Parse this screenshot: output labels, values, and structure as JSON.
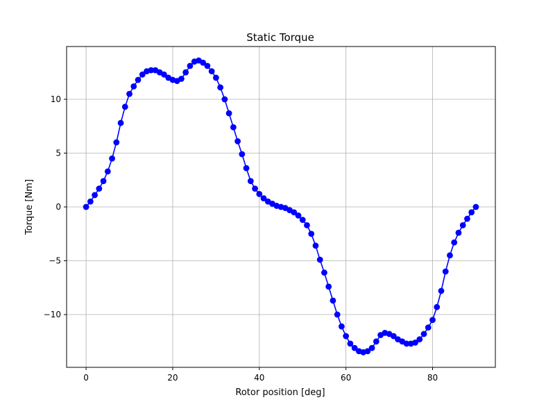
{
  "chart_data": {
    "type": "line",
    "title": "Static Torque",
    "xlabel": "Rotor position [deg]",
    "ylabel": "Torque [Nm]",
    "xlim": [
      -4.5,
      94.5
    ],
    "ylim": [
      -14.9,
      14.9
    ],
    "xticks": [
      0,
      20,
      40,
      60,
      80
    ],
    "yticks": [
      -10,
      -5,
      0,
      5,
      10
    ],
    "xtick_labels": [
      "0",
      "20",
      "40",
      "60",
      "80"
    ],
    "ytick_labels": [
      "−10",
      "−5",
      "0",
      "5",
      "10"
    ],
    "grid": true,
    "series": [
      {
        "color": "#0000ff",
        "marker": "circle",
        "x": [
          0,
          1,
          2,
          3,
          4,
          5,
          6,
          7,
          8,
          9,
          10,
          11,
          12,
          13,
          14,
          15,
          16,
          17,
          18,
          19,
          20,
          21,
          22,
          23,
          24,
          25,
          26,
          27,
          28,
          29,
          30,
          31,
          32,
          33,
          34,
          35,
          36,
          37,
          38,
          39,
          40,
          41,
          42,
          43,
          44,
          45,
          46,
          47,
          48,
          49,
          50,
          51,
          52,
          53,
          54,
          55,
          56,
          57,
          58,
          59,
          60,
          61,
          62,
          63,
          64,
          65,
          66,
          67,
          68,
          69,
          70,
          71,
          72,
          73,
          74,
          75,
          76,
          77,
          78,
          79,
          80,
          81,
          82,
          83,
          84,
          85,
          86,
          87,
          88,
          89,
          90
        ],
        "y": [
          0.0,
          0.5,
          1.1,
          1.7,
          2.4,
          3.3,
          4.5,
          6.0,
          7.8,
          9.3,
          10.5,
          11.2,
          11.8,
          12.3,
          12.6,
          12.7,
          12.7,
          12.5,
          12.3,
          12.0,
          11.8,
          11.7,
          11.9,
          12.5,
          13.1,
          13.5,
          13.6,
          13.4,
          13.1,
          12.6,
          12.0,
          11.1,
          10.0,
          8.7,
          7.4,
          6.1,
          4.9,
          3.6,
          2.4,
          1.7,
          1.2,
          0.8,
          0.5,
          0.3,
          0.1,
          0.0,
          -0.1,
          -0.3,
          -0.5,
          -0.8,
          -1.2,
          -1.7,
          -2.5,
          -3.6,
          -4.9,
          -6.1,
          -7.4,
          -8.7,
          -10.0,
          -11.1,
          -12.0,
          -12.7,
          -13.1,
          -13.4,
          -13.5,
          -13.4,
          -13.1,
          -12.5,
          -11.9,
          -11.7,
          -11.8,
          -12.0,
          -12.3,
          -12.5,
          -12.7,
          -12.7,
          -12.6,
          -12.3,
          -11.8,
          -11.2,
          -10.5,
          -9.3,
          -7.8,
          -6.0,
          -4.5,
          -3.3,
          -2.4,
          -1.7,
          -1.1,
          -0.5,
          0.0
        ]
      }
    ]
  }
}
